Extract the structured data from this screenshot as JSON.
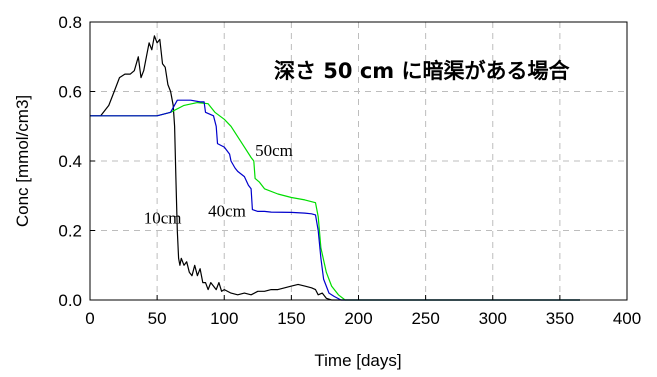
{
  "chart_data": {
    "type": "line",
    "annotation_title": "深さ 50 cm に暗渠がある場合",
    "xlabel": "Time [days]",
    "ylabel": "Conc [mmol/cm3]",
    "xlim": [
      0,
      400
    ],
    "ylim": [
      0,
      0.8
    ],
    "x_ticks": [
      "0",
      "50",
      "100",
      "150",
      "200",
      "250",
      "300",
      "350",
      "400"
    ],
    "y_ticks": [
      "0.0",
      "0.2",
      "0.4",
      "0.6",
      "0.8"
    ],
    "grid": true,
    "colors": {
      "10cm": "#000000",
      "40cm": "#0000cc",
      "50cm": "#00dd00"
    },
    "series": [
      {
        "name": "10cm",
        "label_pos": [
          40,
          0.22
        ],
        "points": [
          [
            0,
            0.53
          ],
          [
            8,
            0.53
          ],
          [
            14,
            0.56
          ],
          [
            18,
            0.6
          ],
          [
            22,
            0.64
          ],
          [
            26,
            0.65
          ],
          [
            30,
            0.65
          ],
          [
            33,
            0.66
          ],
          [
            36,
            0.7
          ],
          [
            38,
            0.64
          ],
          [
            40,
            0.66
          ],
          [
            42,
            0.7
          ],
          [
            44,
            0.74
          ],
          [
            46,
            0.72
          ],
          [
            48,
            0.76
          ],
          [
            50,
            0.74
          ],
          [
            52,
            0.75
          ],
          [
            54,
            0.68
          ],
          [
            56,
            0.67
          ],
          [
            58,
            0.62
          ],
          [
            60,
            0.6
          ],
          [
            62,
            0.56
          ],
          [
            63,
            0.5
          ],
          [
            64,
            0.35
          ],
          [
            65,
            0.2
          ],
          [
            66,
            0.12
          ],
          [
            67,
            0.1
          ],
          [
            68,
            0.12
          ],
          [
            70,
            0.1
          ],
          [
            72,
            0.11
          ],
          [
            74,
            0.08
          ],
          [
            76,
            0.07
          ],
          [
            78,
            0.1
          ],
          [
            80,
            0.07
          ],
          [
            82,
            0.09
          ],
          [
            84,
            0.05
          ],
          [
            86,
            0.05
          ],
          [
            88,
            0.03
          ],
          [
            90,
            0.05
          ],
          [
            92,
            0.04
          ],
          [
            94,
            0.03
          ],
          [
            96,
            0.05
          ],
          [
            98,
            0.025
          ],
          [
            100,
            0.03
          ],
          [
            105,
            0.02
          ],
          [
            110,
            0.015
          ],
          [
            115,
            0.02
          ],
          [
            120,
            0.015
          ],
          [
            125,
            0.025
          ],
          [
            130,
            0.025
          ],
          [
            135,
            0.03
          ],
          [
            140,
            0.03
          ],
          [
            145,
            0.035
          ],
          [
            150,
            0.04
          ],
          [
            155,
            0.045
          ],
          [
            160,
            0.04
          ],
          [
            165,
            0.035
          ],
          [
            168,
            0.03
          ],
          [
            170,
            0.015
          ],
          [
            173,
            0.02
          ],
          [
            176,
            0.005
          ],
          [
            180,
            0.0
          ],
          [
            200,
            0.0
          ],
          [
            250,
            0.0
          ],
          [
            300,
            0.0
          ],
          [
            350,
            0.0
          ],
          [
            365,
            0.0
          ]
        ]
      },
      {
        "name": "40cm",
        "label_pos": [
          88,
          0.24
        ],
        "points": [
          [
            0,
            0.53
          ],
          [
            50,
            0.53
          ],
          [
            60,
            0.54
          ],
          [
            65,
            0.575
          ],
          [
            75,
            0.575
          ],
          [
            82,
            0.57
          ],
          [
            85,
            0.57
          ],
          [
            86,
            0.54
          ],
          [
            92,
            0.53
          ],
          [
            94,
            0.5
          ],
          [
            95,
            0.45
          ],
          [
            100,
            0.44
          ],
          [
            104,
            0.42
          ],
          [
            105,
            0.4
          ],
          [
            108,
            0.38
          ],
          [
            110,
            0.37
          ],
          [
            115,
            0.355
          ],
          [
            118,
            0.33
          ],
          [
            120,
            0.32
          ],
          [
            121,
            0.26
          ],
          [
            125,
            0.255
          ],
          [
            130,
            0.255
          ],
          [
            135,
            0.253
          ],
          [
            150,
            0.252
          ],
          [
            160,
            0.25
          ],
          [
            165,
            0.248
          ],
          [
            168,
            0.245
          ],
          [
            170,
            0.2
          ],
          [
            172,
            0.12
          ],
          [
            174,
            0.06
          ],
          [
            178,
            0.02
          ],
          [
            182,
            0.01
          ],
          [
            187,
            0.0
          ],
          [
            200,
            0.0
          ],
          [
            250,
            0.0
          ],
          [
            300,
            0.0
          ],
          [
            350,
            0.0
          ],
          [
            365,
            0.0
          ]
        ]
      },
      {
        "name": "50cm",
        "label_pos": [
          123,
          0.415
        ],
        "points": [
          [
            0,
            0.53
          ],
          [
            50,
            0.53
          ],
          [
            60,
            0.54
          ],
          [
            70,
            0.56
          ],
          [
            80,
            0.568
          ],
          [
            88,
            0.565
          ],
          [
            93,
            0.54
          ],
          [
            100,
            0.52
          ],
          [
            105,
            0.5
          ],
          [
            110,
            0.47
          ],
          [
            115,
            0.44
          ],
          [
            120,
            0.41
          ],
          [
            122,
            0.4
          ],
          [
            123,
            0.35
          ],
          [
            126,
            0.34
          ],
          [
            130,
            0.32
          ],
          [
            140,
            0.305
          ],
          [
            150,
            0.295
          ],
          [
            160,
            0.288
          ],
          [
            168,
            0.28
          ],
          [
            170,
            0.24
          ],
          [
            172,
            0.15
          ],
          [
            176,
            0.08
          ],
          [
            180,
            0.04
          ],
          [
            185,
            0.015
          ],
          [
            190,
            0.0
          ],
          [
            200,
            0.0
          ],
          [
            250,
            0.0
          ],
          [
            300,
            0.0
          ],
          [
            350,
            0.0
          ],
          [
            365,
            0.0
          ]
        ]
      }
    ]
  }
}
